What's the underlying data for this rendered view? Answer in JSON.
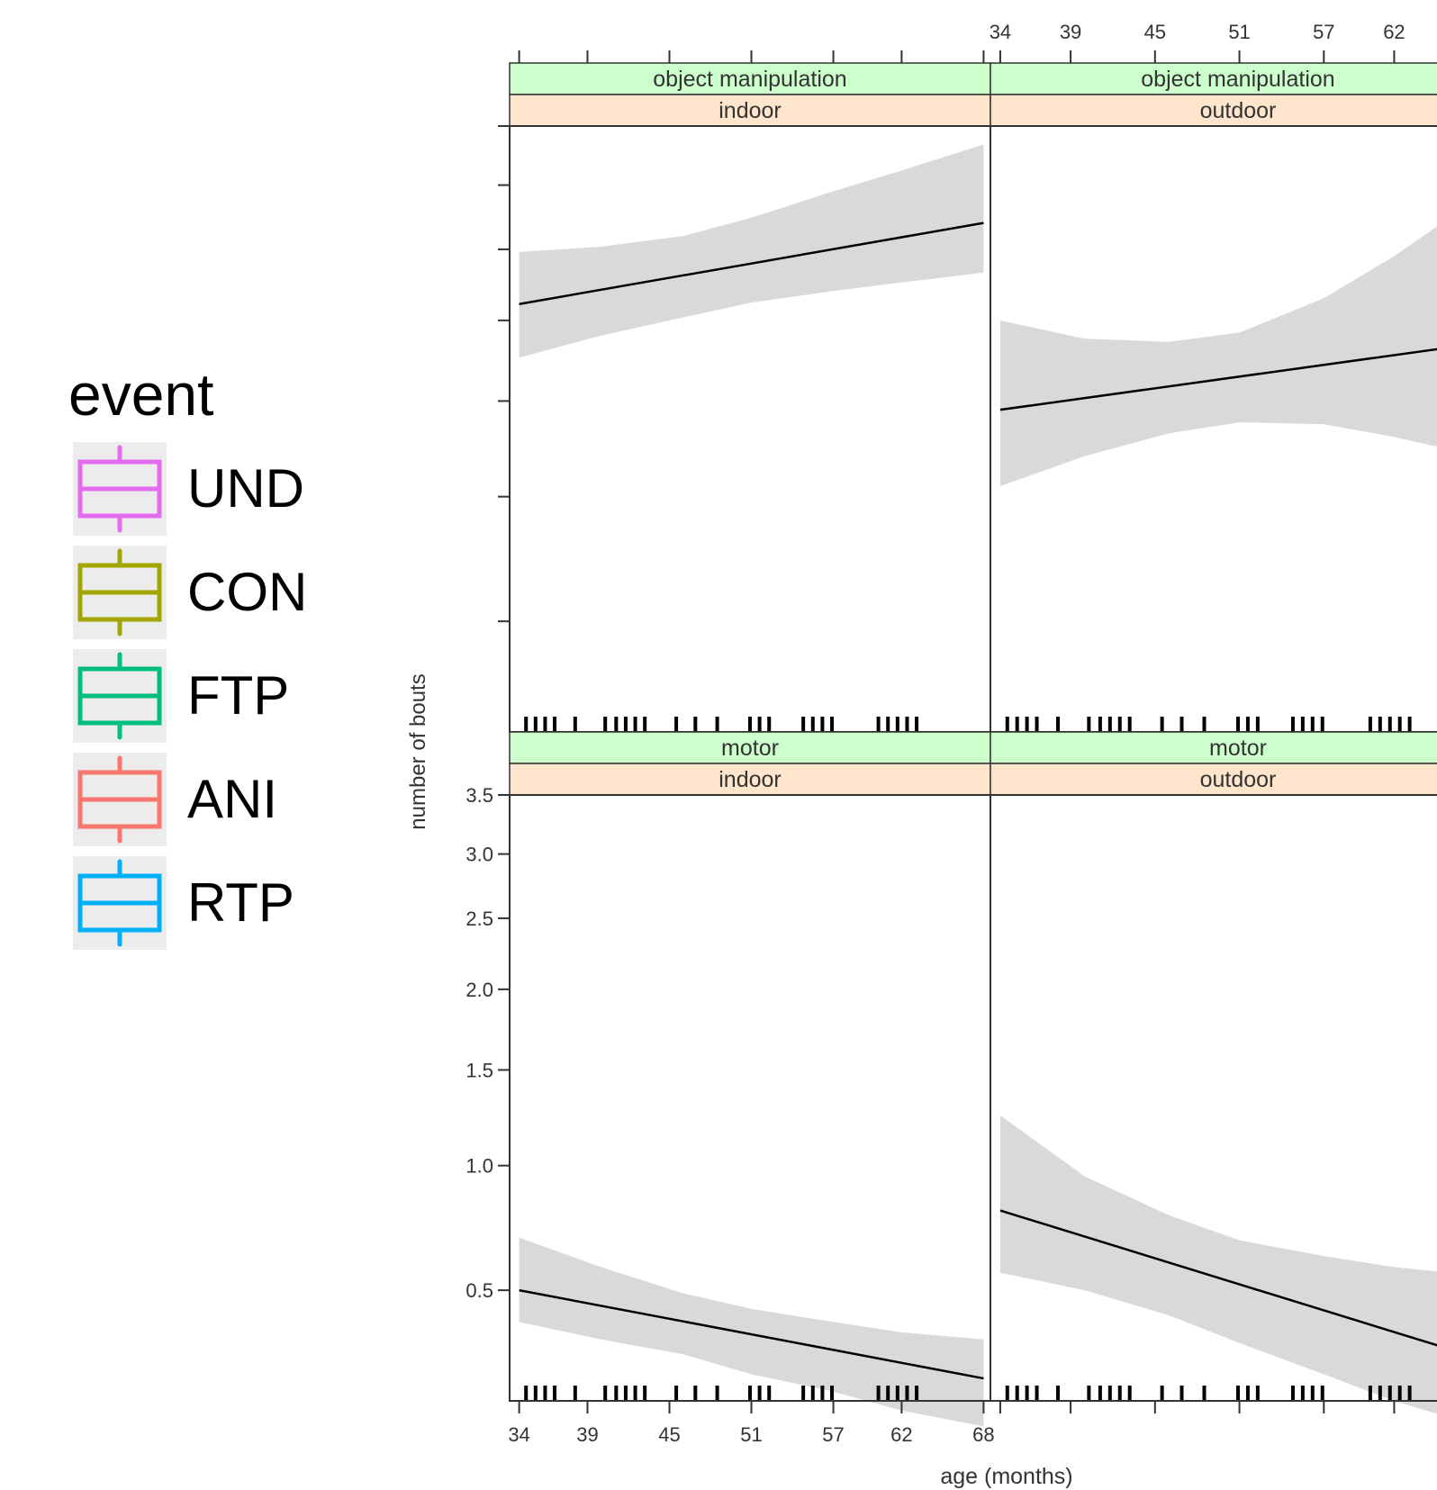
{
  "legend": {
    "title": "event",
    "items": [
      {
        "label": "UND",
        "color": "#e46cf0"
      },
      {
        "label": "CON",
        "color": "#a3a500"
      },
      {
        "label": "FTP",
        "color": "#00bf7d"
      },
      {
        "label": "ANI",
        "color": "#f8766d"
      },
      {
        "label": "RTP",
        "color": "#00b0f6"
      }
    ]
  },
  "chart_data": {
    "type": "line",
    "xlabel": "age (months)",
    "ylabel": "number of bouts",
    "x_ticks": [
      34,
      39,
      45,
      51,
      57,
      62,
      68
    ],
    "y_ticks": [
      0.5,
      1.0,
      1.5,
      2.0,
      2.5,
      3.0,
      3.5
    ],
    "y_tick_labels": [
      "0.5",
      "1.0",
      "1.5",
      "2.0",
      "2.5",
      "3.0",
      "3.5"
    ],
    "ylim": [
      0.2,
      3.5
    ],
    "xlim": [
      33.3,
      68.5
    ],
    "rug_x": [
      34.5,
      35.2,
      35.9,
      36.6,
      38.1,
      40.3,
      41.1,
      41.8,
      42.5,
      43.2,
      45.5,
      46.9,
      48.5,
      50.9,
      51.6,
      52.3,
      54.8,
      55.5,
      56.2,
      56.9,
      60.3,
      61.0,
      61.7,
      62.4,
      63.1
    ],
    "panels": [
      {
        "row": 1,
        "col": 1,
        "strip_top": "object manipulation",
        "strip_bottom": "indoor",
        "line": {
          "x": [
            34,
            68
          ],
          "y": [
            2.11,
            2.7
          ]
        },
        "band_x": [
          34,
          40,
          46,
          51,
          57,
          62,
          68
        ],
        "band_upper": [
          2.48,
          2.52,
          2.6,
          2.74,
          2.95,
          3.12,
          3.34
        ],
        "band_lower": [
          1.76,
          1.9,
          2.02,
          2.12,
          2.2,
          2.26,
          2.33
        ]
      },
      {
        "row": 1,
        "col": 2,
        "strip_top": "object manipulation",
        "strip_bottom": "outdoor",
        "line": {
          "x": [
            34,
            68
          ],
          "y": [
            1.45,
            1.85
          ]
        },
        "band_x": [
          34,
          40,
          46,
          51,
          57,
          62,
          68
        ],
        "band_upper": [
          2.0,
          1.88,
          1.86,
          1.92,
          2.15,
          2.45,
          2.9
        ],
        "band_lower": [
          1.05,
          1.2,
          1.32,
          1.38,
          1.37,
          1.3,
          1.2
        ]
      },
      {
        "row": 2,
        "col": 1,
        "strip_top": "motor",
        "strip_bottom": "indoor",
        "line": {
          "x": [
            34,
            68
          ],
          "y": [
            0.5,
            0.25
          ]
        },
        "band_x": [
          34,
          40,
          46,
          51,
          57,
          62,
          68
        ],
        "band_upper": [
          0.69,
          0.58,
          0.49,
          0.44,
          0.4,
          0.37,
          0.35
        ],
        "band_lower": [
          0.4,
          0.35,
          0.31,
          0.26,
          0.22,
          0.18,
          0.15
        ]
      },
      {
        "row": 2,
        "col": 2,
        "strip_top": "motor",
        "strip_bottom": "outdoor",
        "line": {
          "x": [
            34,
            68
          ],
          "y": [
            0.8,
            0.3
          ]
        },
        "band_x": [
          34,
          40,
          46,
          51,
          57,
          62,
          68
        ],
        "band_upper": [
          1.25,
          0.95,
          0.78,
          0.68,
          0.62,
          0.58,
          0.55
        ],
        "band_lower": [
          0.56,
          0.5,
          0.42,
          0.34,
          0.26,
          0.2,
          0.15
        ]
      }
    ]
  }
}
